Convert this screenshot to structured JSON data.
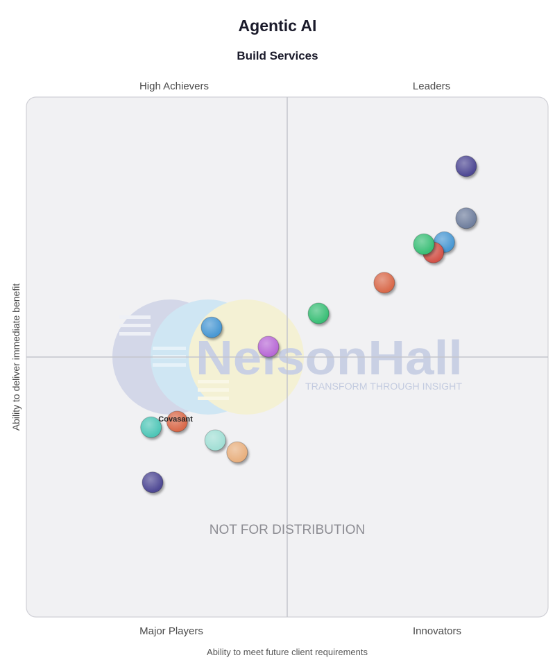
{
  "chart_data": {
    "type": "scatter",
    "title": "Agentic AI",
    "subtitle": "Build Services",
    "xlabel": "Ability to meet future client requirements",
    "ylabel": "Ability to deliver immediate benefit",
    "xlim": [
      0,
      100
    ],
    "ylim": [
      0,
      100
    ],
    "grid": false,
    "quadrants": {
      "top_left": "High Achievers",
      "top_right": "Leaders",
      "bottom_left": "Major Players",
      "bottom_right": "Innovators"
    },
    "watermark": {
      "brand": "NelsonHall",
      "tagline": "TRANSFORM THROUGH INSIGHT",
      "notice": "NOT FOR DISTRIBUTION"
    },
    "points": [
      {
        "x": 84.3,
        "y": 86.7,
        "color": "#4f4a94",
        "label": ""
      },
      {
        "x": 84.3,
        "y": 76.7,
        "color": "#6f7f9e",
        "label": ""
      },
      {
        "x": 80.1,
        "y": 72.1,
        "color": "#4a98d3",
        "label": ""
      },
      {
        "x": 78.0,
        "y": 70.1,
        "color": "#d2524a",
        "label": ""
      },
      {
        "x": 76.2,
        "y": 71.7,
        "color": "#3bbf77",
        "label": ""
      },
      {
        "x": 68.6,
        "y": 64.3,
        "color": "#d96a4c",
        "label": ""
      },
      {
        "x": 56.0,
        "y": 58.4,
        "color": "#3bbf77",
        "label": ""
      },
      {
        "x": 46.4,
        "y": 52.0,
        "color": "#b86ad6",
        "label": ""
      },
      {
        "x": 35.5,
        "y": 55.7,
        "color": "#4a98d3",
        "label": ""
      },
      {
        "x": 28.9,
        "y": 37.6,
        "color": "#d96a4c",
        "label": "Covasant"
      },
      {
        "x": 23.9,
        "y": 36.5,
        "color": "#4fc6b7",
        "label": ""
      },
      {
        "x": 36.2,
        "y": 34.0,
        "color": "#a2dfd5",
        "label": ""
      },
      {
        "x": 40.4,
        "y": 31.7,
        "color": "#e8b07f",
        "label": ""
      },
      {
        "x": 24.2,
        "y": 25.9,
        "color": "#4f4a94",
        "label": ""
      }
    ]
  }
}
